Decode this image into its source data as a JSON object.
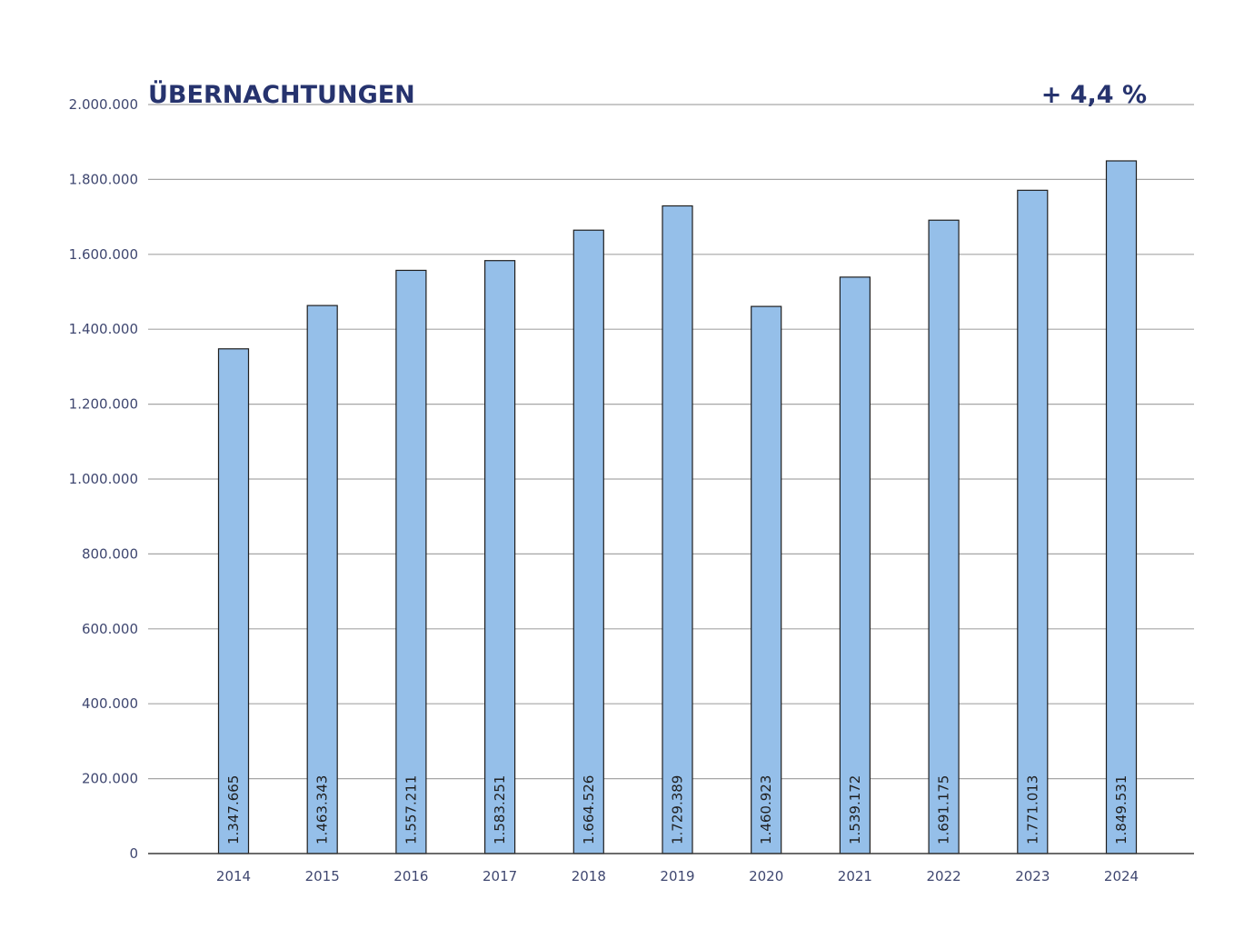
{
  "chart_data": {
    "type": "bar",
    "title": "ÜBERNACHTUNGEN",
    "change": "+ 4,4 %",
    "categories": [
      "2014",
      "2015",
      "2016",
      "2017",
      "2018",
      "2019",
      "2020",
      "2021",
      "2022",
      "2023",
      "2024"
    ],
    "values": [
      1347665,
      1463343,
      1557211,
      1583251,
      1664526,
      1729389,
      1460923,
      1539172,
      1691175,
      1771013,
      1849531
    ],
    "data_labels": [
      "1.347.665",
      "1.463.343",
      "1.557.211",
      "1.583.251",
      "1.664.526",
      "1.729.389",
      "1.460.923",
      "1.539.172",
      "1.691.175",
      "1.771.013",
      "1.849.531"
    ],
    "y_ticks": [
      0,
      200000,
      400000,
      600000,
      800000,
      1000000,
      1200000,
      1400000,
      1600000,
      1800000,
      2000000
    ],
    "y_tick_labels": [
      "0",
      "200.000",
      "400.000",
      "600.000",
      "800.000",
      "1.000.000",
      "1.200.000",
      "1.400.000",
      "1.600.000",
      "1.800.000",
      "2.000.000"
    ],
    "ylim": [
      0,
      2000000
    ],
    "grid": true,
    "xlabel": "",
    "ylabel": ""
  },
  "colors": {
    "bar_fill": "#95bfe9",
    "bar_stroke": "#1f1f1f",
    "grid": "#a6a6a6",
    "axis": "#3a3a3a",
    "title": "#26336e",
    "tick_text": "#3f4770",
    "bar_label_text": "#1f1f1f"
  }
}
